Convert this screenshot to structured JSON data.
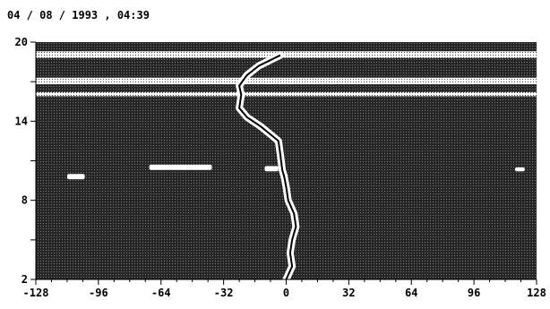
{
  "chart_data": {
    "type": "heatmap",
    "title": "04 / 08 / 1993 , 04:39",
    "xlabel": "",
    "ylabel": "",
    "xlim": [
      -128,
      128
    ],
    "ylim": [
      2,
      20
    ],
    "x_ticks": [
      -128,
      -96,
      -64,
      -32,
      0,
      32,
      64,
      96,
      128
    ],
    "x_tick_labels": [
      "-128",
      "-96",
      "-64",
      "-32",
      "0",
      "32",
      "64",
      "96",
      "128"
    ],
    "y_ticks": [
      2,
      8,
      14,
      20
    ],
    "y_tick_labels": [
      "2",
      "8",
      "14",
      "20"
    ],
    "grid": false,
    "colors": {
      "background": "#262626",
      "echo": "#ffffff",
      "trace": "#000000"
    },
    "bright_bands": [
      {
        "x": [
          -128,
          128
        ],
        "y": [
          18.8,
          19.3
        ]
      },
      {
        "x": [
          -128,
          128
        ],
        "y": [
          16.8,
          17.3
        ]
      },
      {
        "x": [
          -128,
          128
        ],
        "y": [
          15.9,
          16.2
        ]
      },
      {
        "x": [
          -112,
          -103
        ],
        "y": [
          9.6,
          10.0
        ]
      },
      {
        "x": [
          -70,
          -38
        ],
        "y": [
          10.3,
          10.7
        ]
      },
      {
        "x": [
          -11,
          -4
        ],
        "y": [
          10.2,
          10.6
        ]
      },
      {
        "x": [
          117,
          122
        ],
        "y": [
          10.2,
          10.5
        ]
      }
    ],
    "trace": {
      "x": [
        0,
        3,
        2,
        3,
        5,
        4,
        1,
        0,
        -1,
        -2,
        -3,
        -4,
        -8,
        -13,
        -20,
        -24,
        -23,
        -24,
        -20,
        -14,
        -3
      ],
      "y": [
        2,
        3,
        4,
        5,
        6,
        7,
        8,
        9,
        9.8,
        10.3,
        11.5,
        12.5,
        13.0,
        13.6,
        14.3,
        15.0,
        16.0,
        16.7,
        17.5,
        18.2,
        19.0
      ]
    }
  }
}
